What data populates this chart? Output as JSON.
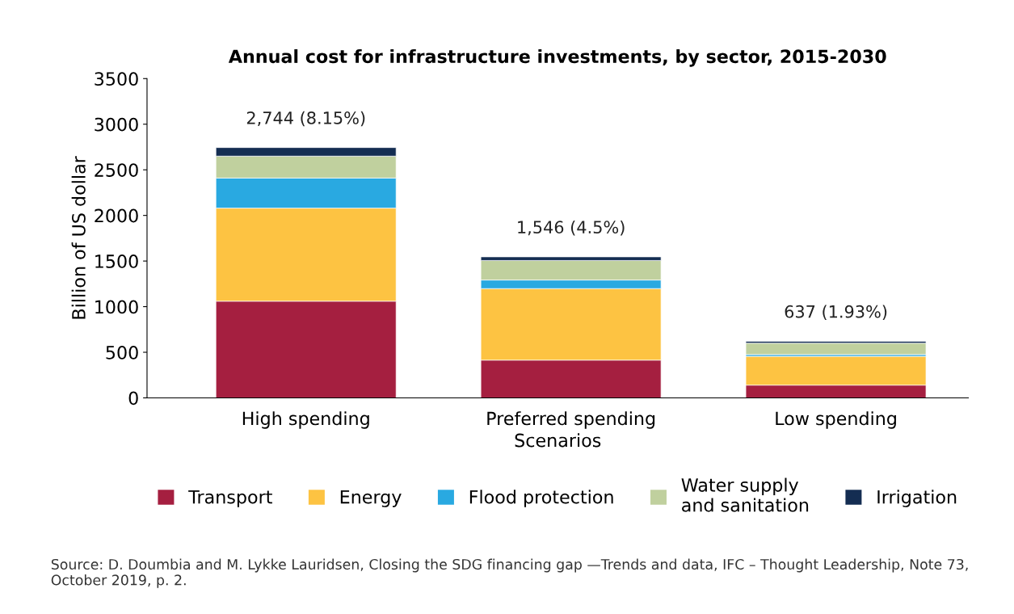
{
  "chart_data": {
    "type": "bar",
    "stacked": true,
    "title": "Annual cost for infrastructure investments, by sector, 2015-2030",
    "xlabel": "Scenarios",
    "ylabel": "Billion of US dollar",
    "categories": [
      "High spending",
      "Preferred spending",
      "Low spending"
    ],
    "series": [
      {
        "name": "Transport",
        "color": "#a51f40",
        "values": [
          1060,
          414,
          140
        ]
      },
      {
        "name": "Energy",
        "color": "#fdc342",
        "values": [
          1020,
          784,
          315
        ]
      },
      {
        "name": "Flood protection",
        "color": "#29a9e1",
        "values": [
          330,
          94,
          20
        ]
      },
      {
        "name": "Water supply\nand sanitation",
        "color": "#c0d09e",
        "values": [
          240,
          214,
          125
        ]
      },
      {
        "name": "Irrigation",
        "color": "#142d52",
        "values": [
          94,
          40,
          20
        ]
      }
    ],
    "totals": [
      "2,744 (8.15%)",
      "1,546 (4.5%)",
      "637 (1.93%)"
    ],
    "ylim": [
      0,
      3500
    ],
    "yticks": [
      0,
      500,
      1000,
      1500,
      2000,
      2500,
      3000,
      3500
    ],
    "grid": false,
    "legend": "bottom",
    "annotations": [
      "Source: D. Doumbia and M. Lykke Lauridsen, Closing the SDG financing gap —Trends and data, IFC – Thought Leadership, Note 73, October 2019, p. 2."
    ]
  }
}
